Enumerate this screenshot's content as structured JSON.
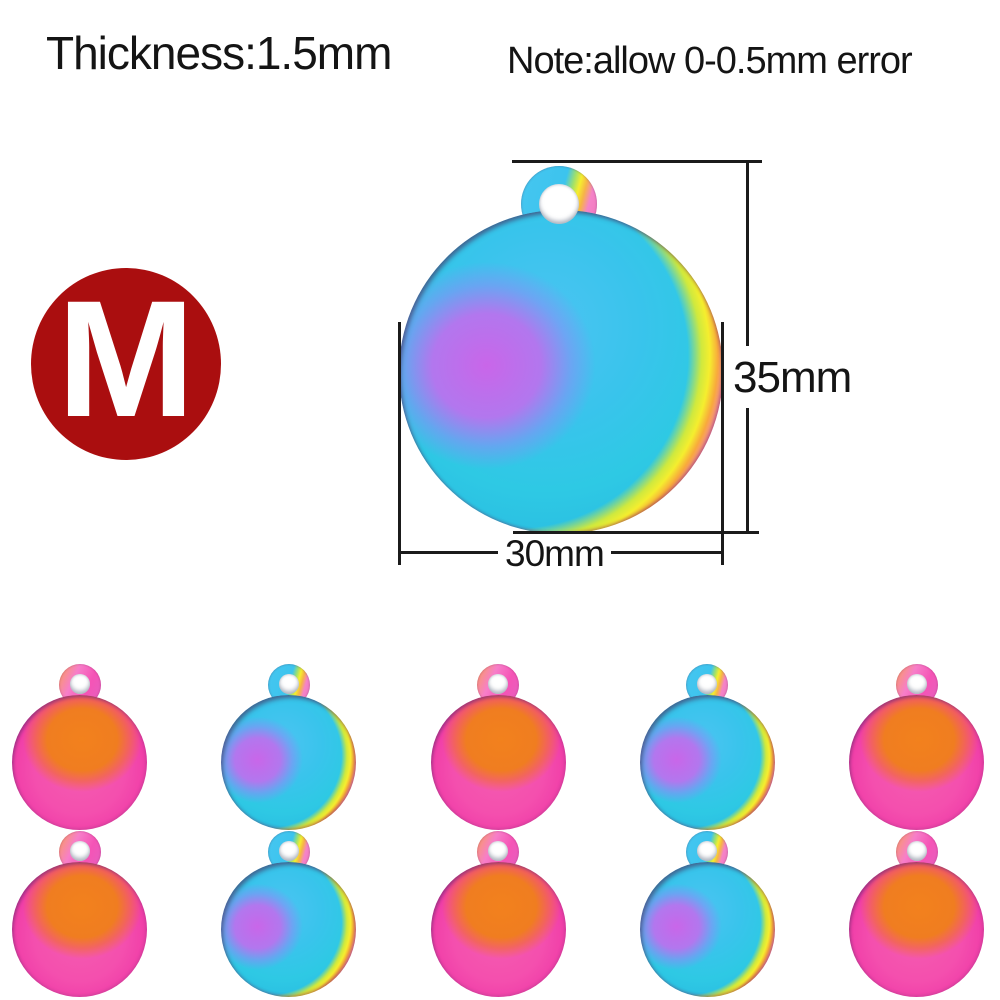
{
  "labels": {
    "thickness": "Thickness:1.5mm",
    "note": "Note:allow 0-0.5mm error",
    "height_dim": "35mm",
    "width_dim": "30mm"
  },
  "badge": {
    "letter": "M"
  },
  "main_pendant": {
    "variant": "cool"
  },
  "pendant_grid": {
    "rows": [
      {
        "variants": [
          "warm",
          "cool",
          "warm",
          "cool",
          "warm"
        ]
      },
      {
        "variants": [
          "warm",
          "cool",
          "warm",
          "cool",
          "warm"
        ]
      }
    ]
  },
  "colors": {
    "css_vars": {
      "text": "#141414",
      "line": "#1b1b1b",
      "badge-bg": "#aa0e0f",
      "badge-fg": "#ffffff",
      "hole": "#ffffff",
      "cool-base1": "#4cc3f2",
      "cool-base2": "#2ec9e4",
      "cool-purple1": "#c966e9",
      "cool-purple2": "#b277ee",
      "rim-green": "#cfe93e",
      "rim-yellow": "#f5ee2e",
      "rim-orange": "#f8a93c",
      "rim-pink": "#f583c8",
      "rim-cyan1": "#44cbf2",
      "rim-cyan2": "#2fb7ea",
      "warm-orange": "#f2811d",
      "warm-pink1": "#f55cb0",
      "warm-pink2": "#ee32a4",
      "loop-cyan": "#3cc4ee",
      "loop-pink": "#f554b6"
    }
  }
}
